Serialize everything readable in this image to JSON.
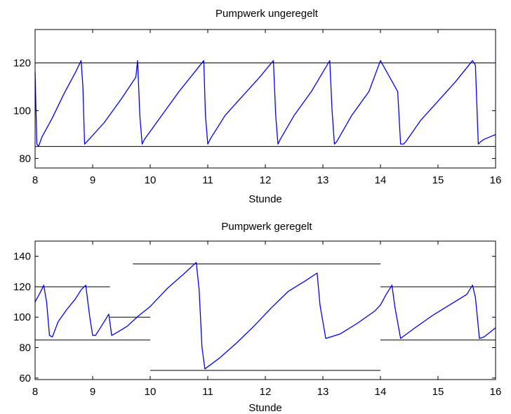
{
  "chart_data": [
    {
      "type": "line",
      "title": "Pumpwerk ungeregelt",
      "xlabel": "Stunde",
      "ylabel": "",
      "xlim": [
        8,
        16
      ],
      "ylim": [
        76,
        134
      ],
      "xticks": [
        "8",
        "9",
        "10",
        "11",
        "12",
        "13",
        "14",
        "15",
        "16"
      ],
      "yticks": [
        "80",
        "100",
        "120"
      ],
      "grid": false,
      "color": "#0000ff",
      "reference_lines": [
        {
          "y": 120,
          "x_start": 8,
          "x_end": 16
        },
        {
          "y": 85,
          "x_start": 8,
          "x_end": 16
        }
      ],
      "series": [
        {
          "x": [
            8.0,
            8.03,
            8.06,
            8.12,
            8.3,
            8.5,
            8.7,
            8.8,
            8.83,
            8.86,
            8.9,
            9.2,
            9.5,
            9.75,
            9.78,
            9.82,
            9.86,
            9.9,
            10.2,
            10.5,
            10.8,
            10.93,
            10.96,
            11.0,
            11.04,
            11.3,
            11.6,
            11.9,
            12.14,
            12.18,
            12.22,
            12.26,
            12.5,
            12.8,
            13.12,
            13.16,
            13.2,
            13.24,
            13.5,
            13.8,
            14.0,
            14.3,
            14.35,
            14.4,
            14.44,
            14.7,
            15.0,
            15.3,
            15.6,
            15.65,
            15.7,
            15.74,
            15.8,
            15.9,
            16.0
          ],
          "y": [
            116,
            86,
            85,
            89,
            97,
            107,
            116,
            121,
            110,
            86,
            87,
            95,
            105,
            114,
            121,
            98,
            86,
            88,
            98,
            108,
            117,
            121,
            98,
            86,
            88,
            98,
            106,
            114,
            121,
            98,
            86,
            88,
            98,
            108,
            121,
            100,
            86,
            87,
            98,
            108,
            121,
            108,
            86,
            86,
            87,
            96,
            104,
            112,
            121,
            119,
            86,
            87,
            88,
            89,
            90
          ]
        }
      ]
    },
    {
      "type": "line",
      "title": "Pumpwerk geregelt",
      "xlabel": "Stunde",
      "ylabel": "",
      "xlim": [
        8,
        16
      ],
      "ylim": [
        59,
        150
      ],
      "xticks": [
        "8",
        "9",
        "10",
        "11",
        "12",
        "13",
        "14",
        "15",
        "16"
      ],
      "yticks": [
        "60",
        "80",
        "100",
        "120",
        "140"
      ],
      "grid": false,
      "color": "#0000ff",
      "reference_lines": [
        {
          "y": 120,
          "x_start": 8,
          "x_end": 9.3
        },
        {
          "y": 85,
          "x_start": 8,
          "x_end": 10.0
        },
        {
          "y": 100,
          "x_start": 9.3,
          "x_end": 10.0
        },
        {
          "y": 135,
          "x_start": 9.7,
          "x_end": 14.0
        },
        {
          "y": 65,
          "x_start": 10.0,
          "x_end": 14.0
        },
        {
          "y": 120,
          "x_start": 14.0,
          "x_end": 16.0
        },
        {
          "y": 85,
          "x_start": 14.0,
          "x_end": 16.0
        }
      ],
      "series": [
        {
          "x": [
            8.0,
            8.1,
            8.15,
            8.2,
            8.25,
            8.3,
            8.4,
            8.55,
            8.7,
            8.8,
            8.88,
            8.95,
            9.0,
            9.05,
            9.1,
            9.2,
            9.28,
            9.33,
            9.38,
            9.6,
            9.8,
            10.0,
            10.3,
            10.6,
            10.8,
            10.85,
            10.9,
            10.95,
            11.2,
            11.5,
            11.8,
            12.1,
            12.4,
            12.7,
            12.9,
            12.95,
            13.05,
            13.3,
            13.6,
            13.9,
            14.0,
            14.1,
            14.2,
            14.25,
            14.35,
            14.6,
            14.9,
            15.2,
            15.5,
            15.6,
            15.65,
            15.72,
            15.8,
            16.0
          ],
          "y": [
            110,
            117,
            121,
            110,
            88,
            87,
            97,
            105,
            112,
            118,
            121,
            100,
            88,
            88,
            91,
            97,
            102,
            88,
            89,
            94,
            101,
            107,
            119,
            129,
            136,
            118,
            80,
            66,
            73,
            83,
            94,
            106,
            117,
            124,
            129,
            108,
            86,
            89,
            96,
            104,
            108,
            115,
            121,
            107,
            86,
            93,
            101,
            108,
            115,
            121,
            113,
            86,
            87,
            93
          ]
        }
      ]
    }
  ]
}
